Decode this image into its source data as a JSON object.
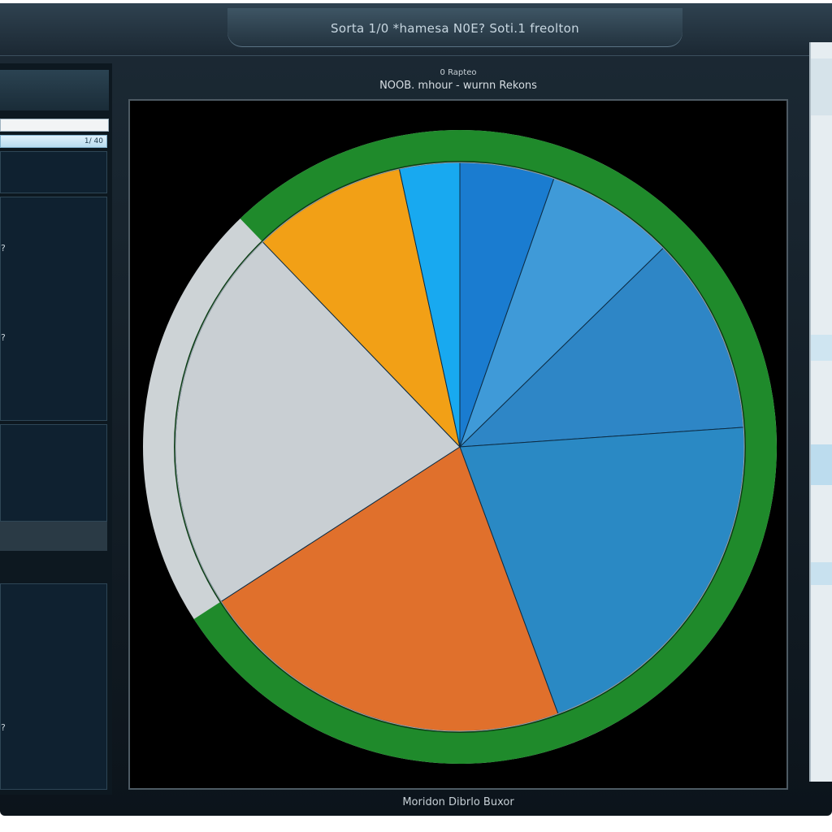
{
  "window": {
    "title": "Sorta 1/0 *hamesa N0E? Soti.1 freolton"
  },
  "chart_data": {
    "type": "pie",
    "title": "0 Rapteo",
    "subtitle": "NOOB. mhour - wurnn Rekons",
    "footer": "Moridon Dibrlo Buxor",
    "slices": [
      {
        "label": "",
        "value": 5.5,
        "color": "#1a7cd0"
      },
      {
        "label": "",
        "value": 7.5,
        "color": "#3f9ad8"
      },
      {
        "label": "",
        "value": 11.5,
        "color": "#2e86c6"
      },
      {
        "label": "",
        "value": 21.0,
        "color": "#2a89c4"
      },
      {
        "label": "",
        "value": 22.0,
        "color": "#e0702c"
      },
      {
        "label": "",
        "value": 22.5,
        "color": "#c9cfd3"
      },
      {
        "label": "",
        "value": 9.0,
        "color": "#f2a016"
      },
      {
        "label": "",
        "value": 3.5,
        "color": "#18a9f0"
      }
    ],
    "ring_color": "#1f8a2b",
    "gray_ring_color": "#cdd3d6"
  },
  "left_panel": {
    "input_value": "1/ 40",
    "items": [
      "?",
      "?",
      "?"
    ]
  }
}
